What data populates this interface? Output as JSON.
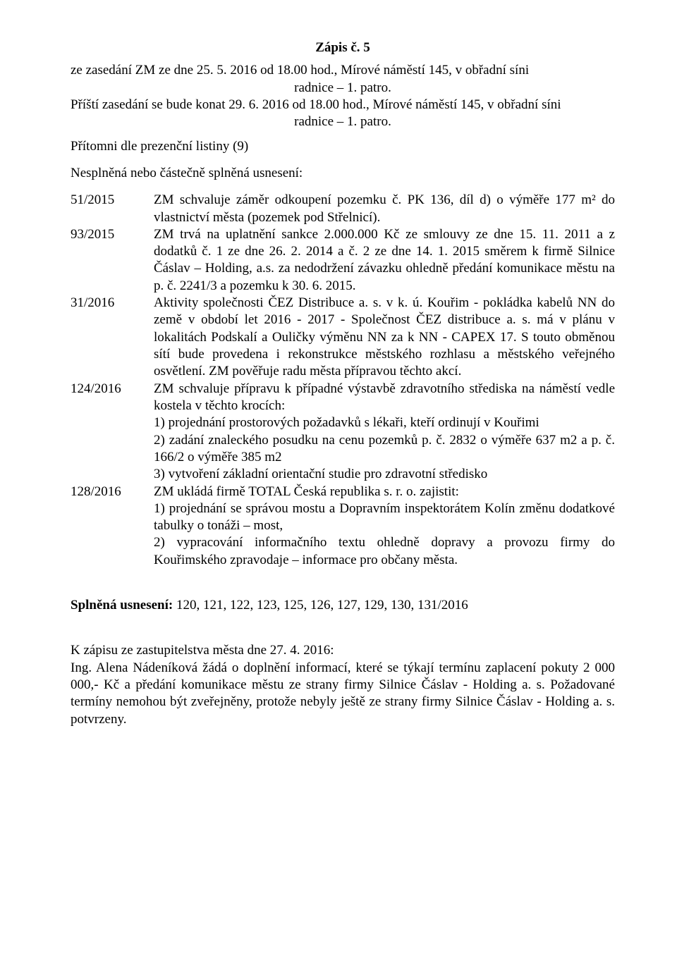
{
  "title": "Zápis č. 5",
  "intro_line1": "ze zasedání ZM ze dne 25. 5. 2016 od 18.00 hod., Mírové náměstí 145, v obřadní síni",
  "intro_center1": "radnice – 1. patro.",
  "intro_line2": "Příští zasedání se bude konat 29. 6. 2016 od 18.00 hod., Mírové náměstí 145, v obřadní síni",
  "intro_center2": "radnice – 1. patro.",
  "pritomni": "Přítomni dle prezenční listiny (9)",
  "nesplnena_header": "Nesplněná nebo částečně splněná usnesení:",
  "resolutions": [
    {
      "num": "51/2015",
      "text": "ZM schvaluje záměr odkoupení pozemku č. PK 136, díl d) o výměře 177 m² do vlastnictví města (pozemek pod Střelnicí)."
    },
    {
      "num": "93/2015",
      "text": "ZM trvá na uplatnění sankce 2.000.000 Kč ze smlouvy ze dne 15. 11. 2011 a z dodatků č. 1 ze dne 26. 2. 2014 a č. 2 ze dne 14. 1. 2015 směrem k firmě  Silnice Čáslav – Holding, a.s. za nedodržení závazku ohledně předání komunikace městu na   p. č. 2241/3 a pozemku k 30. 6. 2015."
    },
    {
      "num": "31/2016",
      "text": "Aktivity společnosti ČEZ Distribuce a. s. v k. ú. Kouřim - pokládka kabelů NN do    země v období let 2016 - 2017 - Společnost ČEZ distribuce a. s. má v plánu v lokalitách Podskalí a Ouličky výměnu NN za k NN - CAPEX 17. S touto obměnou sítí bude provedena i rekonstrukce městského rozhlasu a městského veřejného  osvětlení.  ZM pověřuje radu města   přípravou těchto akcí."
    },
    {
      "num": "124/2016",
      "lines": [
        "ZM schvaluje přípravu k případné výstavbě zdravotního střediska na náměstí vedle kostela v těchto krocích:",
        "1) projednání prostorových požadavků s lékaři, kteří ordinují v Kouřimi",
        "2) zadání znaleckého posudku na cenu pozemků p. č. 2832 o výměře 637 m2 a p. č. 166/2 o výměře 385 m2",
        "3) vytvoření základní orientační studie pro zdravotní středisko"
      ]
    },
    {
      "num": "128/2016",
      "lines": [
        "ZM ukládá firmě TOTAL Česká republika s. r. o. zajistit:",
        "1) projednání se správou mostu a Dopravním inspektorátem Kolín změnu dodatkové tabulky o tonáži – most,",
        "2) vypracování informačního textu ohledně dopravy a provozu firmy do Kouřimského zpravodaje – informace pro občany města."
      ]
    }
  ],
  "splnena_label": "Splněná usnesení:",
  "splnena_values": " 120, 121, 122, 123, 125, 126, 127, 129, 130, 131/2016",
  "zapis_header": "K zápisu ze zastupitelstva města dne 27. 4. 2016:",
  "zapis_body": "Ing. Alena Nádeníková žádá o doplnění informací, které se týkají termínu zaplacení pokuty 2 000 000,- Kč a předání komunikace městu ze strany firmy Silnice Čáslav - Holding a. s. Požadované termíny nemohou být zveřejněny, protože nebyly ještě ze strany firmy Silnice Čáslav - Holding a. s. potvrzeny."
}
